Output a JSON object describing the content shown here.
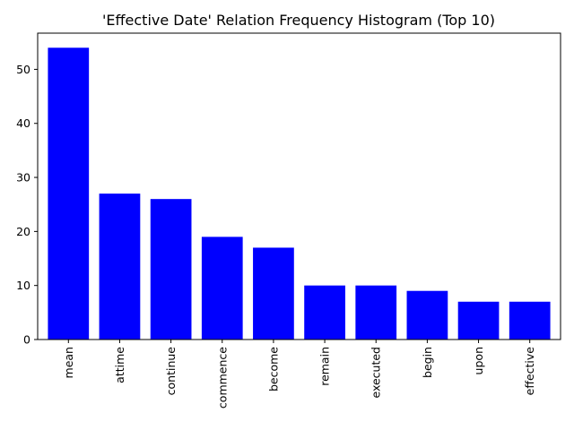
{
  "chart_data": {
    "type": "bar",
    "title": "'Effective Date' Relation Frequency Histogram (Top 10)",
    "xlabel": "",
    "ylabel": "",
    "categories": [
      "mean",
      "attime",
      "continue",
      "commence",
      "become",
      "remain",
      "executed",
      "begin",
      "upon",
      "effective"
    ],
    "values": [
      54,
      27,
      26,
      19,
      17,
      10,
      10,
      9,
      7,
      7
    ],
    "ylim": [
      0,
      56.7
    ],
    "yticks": [
      0,
      10,
      20,
      30,
      40,
      50
    ],
    "bar_color": "#0000ff",
    "grid": false,
    "legend": "none"
  }
}
